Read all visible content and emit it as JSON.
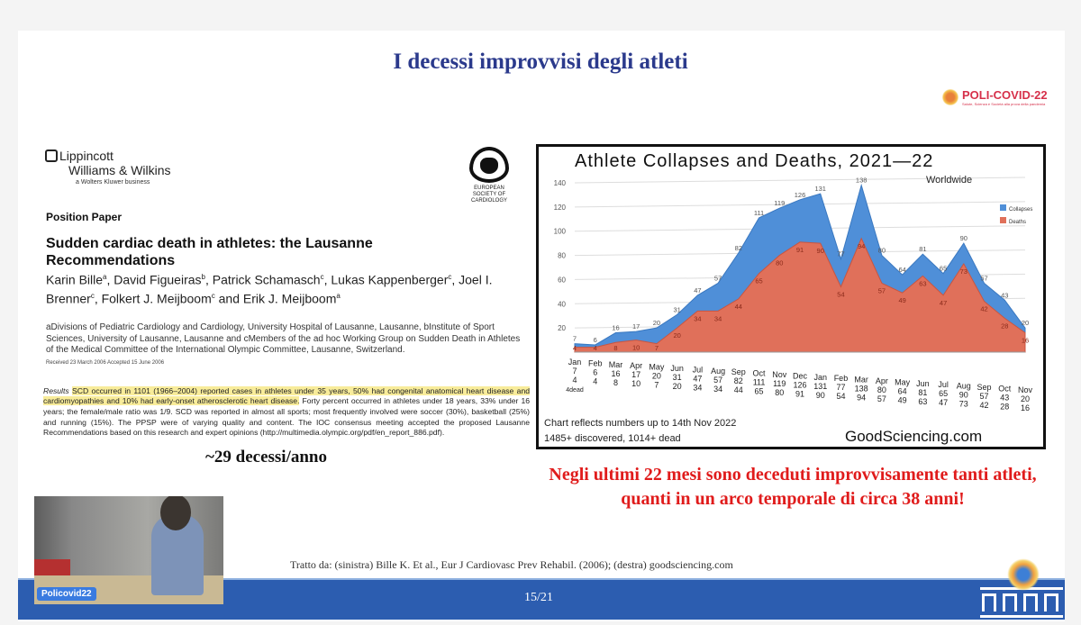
{
  "slide": {
    "title": "I decessi improvvisi degli atleti",
    "logo": {
      "name": "POLI-COVID-22",
      "tagline": "Salute, Scienza e Società alla prova della pandemia"
    },
    "publisher": {
      "line1": "Lippincott",
      "line2": "Williams & Wilkins",
      "line3": "a Wolters Kluwer business"
    },
    "society": "EUROPEAN SOCIETY OF CARDIOLOGY",
    "paper": {
      "type": "Position Paper",
      "title": "Sudden cardiac death in athletes: the Lausanne Recommendations",
      "authors": [
        "Karin Bille",
        "a",
        ", David Figueiras",
        "b",
        ", Patrick Schamasch",
        "c",
        ", Lukas Kappenberger",
        "c",
        ", Joel I. Brenner",
        "c",
        ", Folkert J. Meijboom",
        "c",
        " and Erik J. Meijboom",
        "a"
      ],
      "affiliations": "aDivisions of Pediatric Cardiology and Cardiology, University Hospital of Lausanne, Lausanne, bInstitute of Sport Sciences, University of Lausanne, Lausanne and cMembers of the ad hoc Working Group on Sudden Death in Athletes of the Medical Committee of the International Olympic Committee, Lausanne, Switzerland.",
      "received": "Received 23 March 2006 Accepted 15 June 2006",
      "results_label": "Results",
      "results_highlight": "SCD occurred in 1101 (1966–2004) reported cases in athletes under 35 years, 50% had congenital anatomical heart disease and cardiomyopathies and 10% had early-onset atherosclerotic heart disease.",
      "results_rest": " Forty percent occurred in athletes under 18 years, 33% under 16 years; the female/male ratio was 1/9. SCD was reported in almost all sports; most frequently involved were soccer (30%), basketball (25%) and running (15%). The PPSP were of varying quality and content. The IOC consensus meeting accepted the proposed Lausanne Recommendations based on this research and expert opinions (http://multimedia.olympic.org/pdf/en_report_886.pdf)."
    },
    "rate": "~29 decessi/anno",
    "highlight_text": "Negli ultimi 22 mesi sono deceduti improvvisamente tanti atleti, quanti in un arco temporale di circa 38 anni!",
    "credit": "Tratto da: (sinistra) Bille K. Et al., Eur J Cardiovasc Prev Rehabil. (2006); (destra) goodsciencing.com",
    "page": "15/21"
  },
  "video": {
    "label": "Policovid22"
  },
  "chart_data": {
    "type": "area",
    "title": "Athlete Collapses and Deaths, 2021—22",
    "subtitle": "Worldwide",
    "categories": [
      "Jan",
      "Feb",
      "Mar",
      "Apr",
      "May",
      "Jun",
      "Jul",
      "Aug",
      "Sep",
      "Oct",
      "Nov",
      "Dec",
      "Jan",
      "Feb",
      "Mar",
      "Apr",
      "May",
      "Jun",
      "Jul",
      "Aug",
      "Sep",
      "Oct",
      "Nov"
    ],
    "first_label_extra": "4dead",
    "series": [
      {
        "name": "Collapses",
        "color": "#4f8fd8",
        "values": [
          7,
          6,
          16,
          17,
          20,
          31,
          47,
          57,
          82,
          111,
          119,
          126,
          131,
          77,
          138,
          80,
          64,
          81,
          65,
          90,
          57,
          43,
          20
        ]
      },
      {
        "name": "Deaths",
        "color": "#e0705a",
        "values": [
          4,
          4,
          8,
          10,
          7,
          20,
          34,
          34,
          44,
          65,
          80,
          91,
          90,
          54,
          94,
          57,
          49,
          63,
          47,
          73,
          42,
          28,
          16
        ]
      }
    ],
    "yticks": [
      20,
      40,
      60,
      80,
      100,
      120,
      140
    ],
    "ylim": [
      0,
      140
    ],
    "legend": "right",
    "note1": "Chart reflects numbers up to 14th Nov 2022",
    "note2": "1485+ discovered, 1014+ dead",
    "source": "GoodSciencing.com"
  }
}
